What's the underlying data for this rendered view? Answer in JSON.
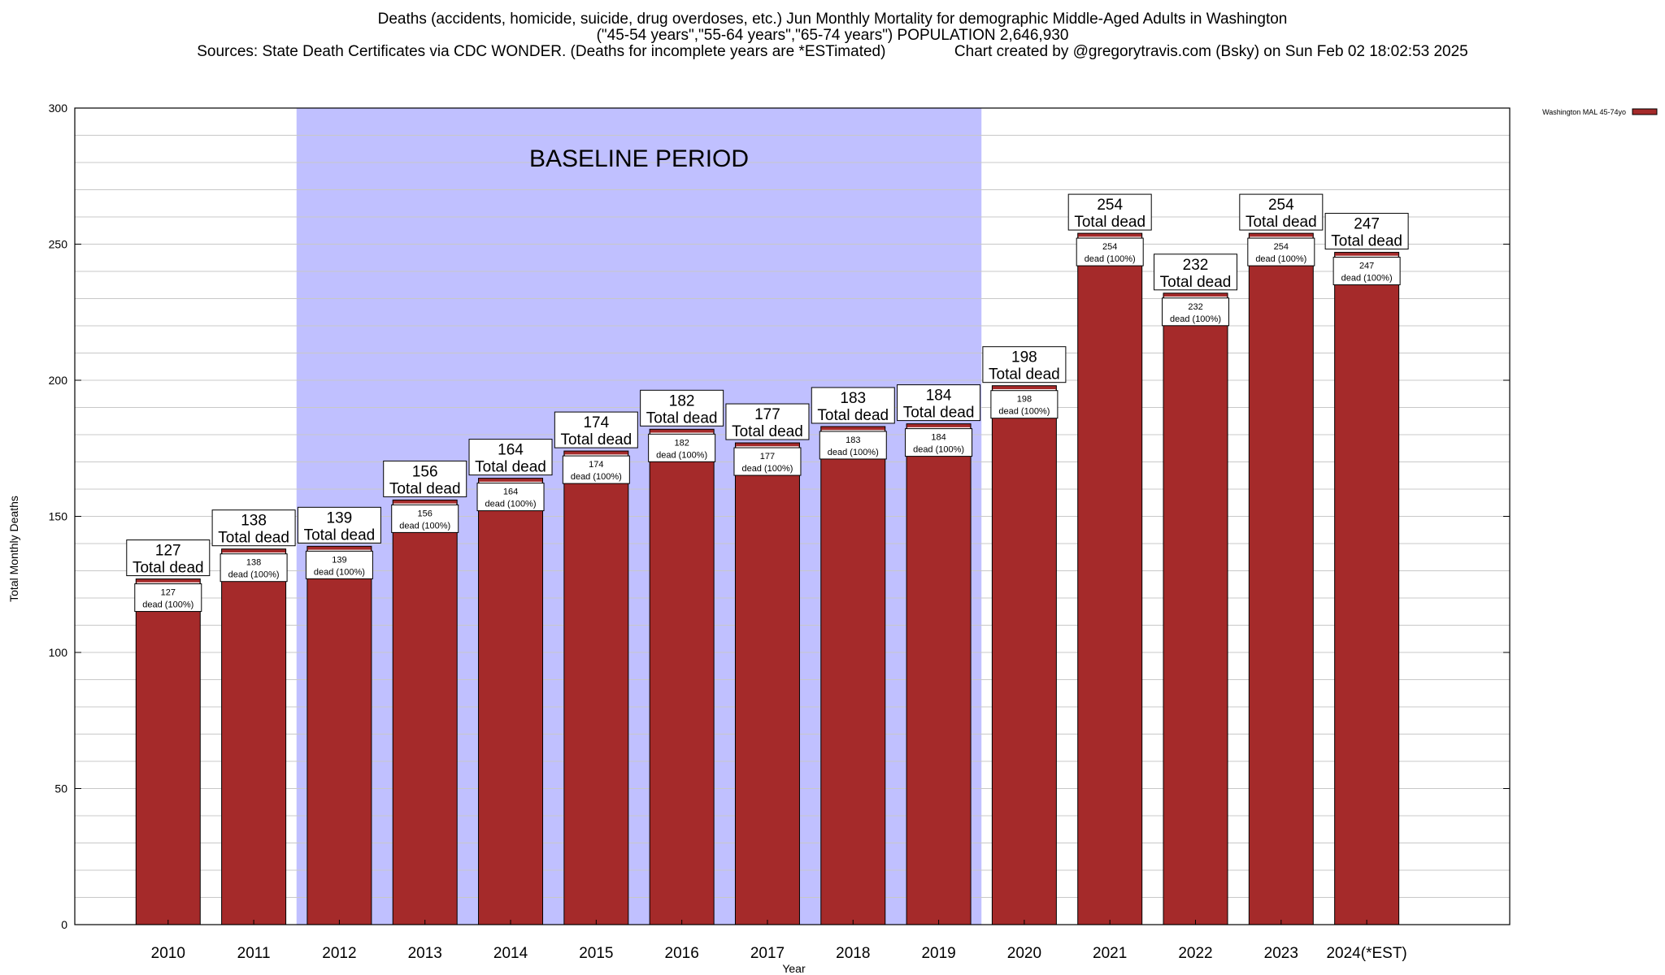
{
  "header": {
    "title": "Deaths (accidents, homicide, suicide, drug overdoses, etc.) Jun Monthly Mortality for demographic Middle-Aged Adults in Washington",
    "subtitle": "(\"45-54 years\",\"55-64 years\",\"65-74 years\") POPULATION 2,646,930",
    "sources": "Sources: State Death Certificates via CDC WONDER. (Deaths for incomplete years are *ESTimated)",
    "credit": "Chart created by @gregorytravis.com (Bsky) on Sun Feb 02 18:02:53 2025"
  },
  "chart_data": {
    "type": "bar",
    "categories": [
      "2010",
      "2011",
      "2012",
      "2013",
      "2014",
      "2015",
      "2016",
      "2017",
      "2018",
      "2019",
      "2020",
      "2021",
      "2022",
      "2023",
      "2024(*EST)"
    ],
    "series": [
      {
        "name": "Washington MAL 45-74yo",
        "values": [
          127,
          138,
          139,
          156,
          164,
          174,
          182,
          177,
          183,
          184,
          198,
          254,
          232,
          254,
          247
        ]
      }
    ],
    "xlabel": "Year",
    "ylabel": "Total Monthly Deaths",
    "ylim": [
      0,
      300
    ],
    "yticks": [
      0,
      50,
      100,
      150,
      200,
      250,
      300
    ],
    "grid": true,
    "legend_position": "top-right",
    "bar_color": "#a52a2a",
    "baseline_shade_color": "#c0c0ff",
    "baseline": {
      "label": "BASELINE PERIOD",
      "from": "2012",
      "to": "2019"
    },
    "total_label": "Total dead",
    "inner_label_line1": "",
    "inner_label_line2": "dead (100%)"
  }
}
